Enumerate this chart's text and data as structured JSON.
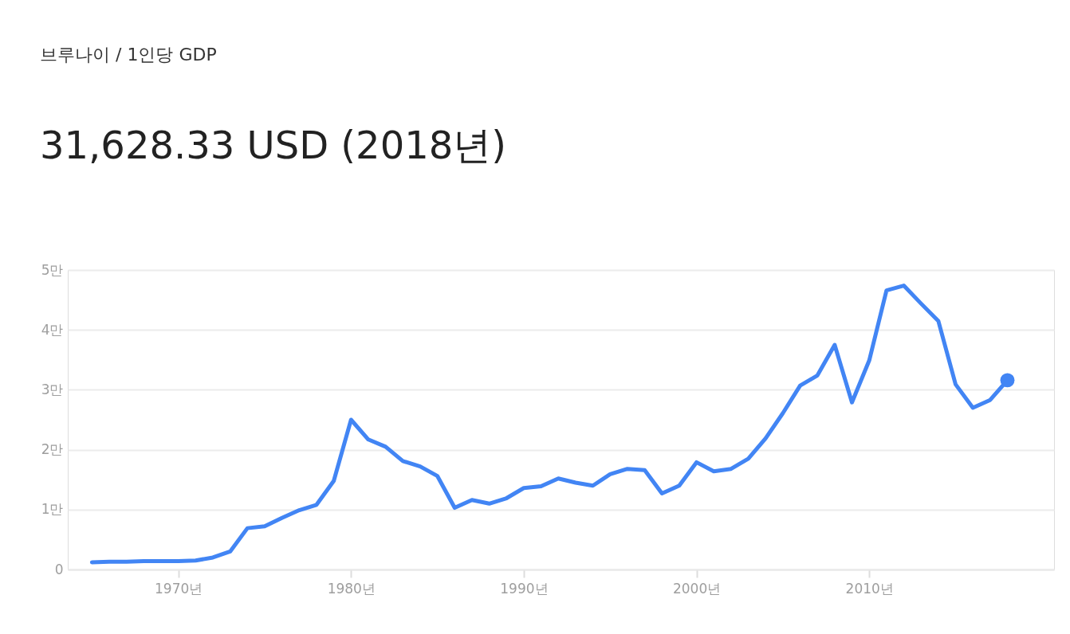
{
  "chart_data": {
    "type": "line",
    "title": "브루나이 / 1인당 GDP",
    "subtitle": "31,628.33 USD (2018년)",
    "x": [
      1965,
      1966,
      1967,
      1968,
      1969,
      1970,
      1971,
      1972,
      1973,
      1974,
      1975,
      1976,
      1977,
      1978,
      1979,
      1980,
      1981,
      1982,
      1983,
      1984,
      1985,
      1986,
      1987,
      1988,
      1989,
      1990,
      1991,
      1992,
      1993,
      1994,
      1995,
      1996,
      1997,
      1998,
      1999,
      2000,
      2001,
      2002,
      2003,
      2004,
      2005,
      2006,
      2007,
      2008,
      2009,
      2010,
      2011,
      2012,
      2013,
      2014,
      2015,
      2016,
      2017,
      2018
    ],
    "series": [
      {
        "color": "#4285f4",
        "values": [
          0.12,
          0.13,
          0.13,
          0.14,
          0.14,
          0.14,
          0.15,
          0.2,
          0.3,
          0.69,
          0.72,
          0.86,
          0.99,
          1.08,
          1.48,
          2.5,
          2.17,
          2.05,
          1.81,
          1.72,
          1.56,
          1.03,
          1.16,
          1.1,
          1.19,
          1.36,
          1.39,
          1.52,
          1.45,
          1.4,
          1.59,
          1.68,
          1.66,
          1.27,
          1.4,
          1.79,
          1.64,
          1.68,
          1.85,
          2.19,
          2.61,
          3.07,
          3.24,
          3.75,
          2.79,
          3.49,
          4.66,
          4.74,
          4.44,
          4.15,
          3.09,
          2.7,
          2.83,
          3.16
        ]
      },
      {
        "type": "scatter",
        "marker": "circle",
        "color": "#4285f4",
        "x": [
          2018
        ],
        "values": [
          3.16
        ]
      }
    ],
    "xlim": [
      1963.6,
      2020.7
    ],
    "ylim": [
      0,
      5
    ],
    "xticks": [
      {
        "value": 1970,
        "label": "1970년"
      },
      {
        "value": 1980,
        "label": "1980년"
      },
      {
        "value": 1990,
        "label": "1990년"
      },
      {
        "value": 2000,
        "label": "2000년"
      },
      {
        "value": 2010,
        "label": "2010년"
      }
    ],
    "yticks": [
      0,
      {
        "value": 1,
        "label": "1만"
      },
      {
        "value": 2,
        "label": "2만"
      },
      {
        "value": 3,
        "label": "3만"
      },
      {
        "value": 4,
        "label": "4만"
      },
      {
        "value": 5,
        "label": "5만"
      }
    ],
    "grid": "y",
    "marker": "none",
    "line_style": "solid"
  }
}
